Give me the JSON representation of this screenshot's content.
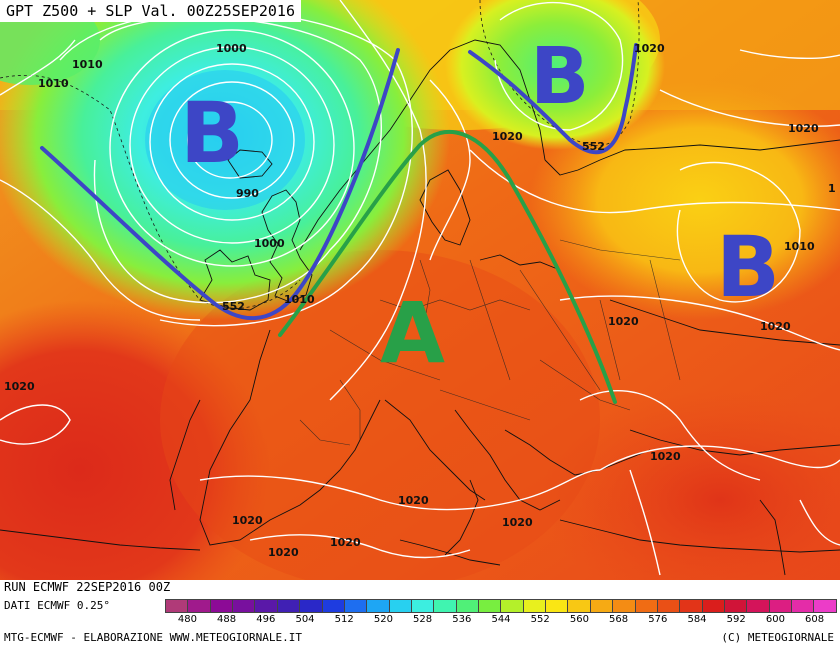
{
  "title": "GPT Z500 + SLP Val. 00Z25SEP2016",
  "footer": {
    "run": "RUN ECMWF 22SEP2016 00Z",
    "dati": "DATI ECMWF 0.25°",
    "elaborazione": "MTG-ECMWF - ELABORAZIONE WWW.METEOGIORNALE.IT",
    "copyright": "(C) METEOGIORNALE"
  },
  "legend": {
    "ticks": [
      "480",
      "488",
      "496",
      "504",
      "512",
      "520",
      "528",
      "536",
      "544",
      "552",
      "560",
      "568",
      "576",
      "584",
      "592",
      "600",
      "608"
    ],
    "colors": [
      "#b03a78",
      "#a01a8c",
      "#8c0a96",
      "#78109e",
      "#5a18a8",
      "#4020b4",
      "#2a28c8",
      "#1e3ce0",
      "#1e6ef0",
      "#1ea6f4",
      "#28d0f0",
      "#3ceee0",
      "#40f4b0",
      "#50f078",
      "#78ee40",
      "#b4f02a",
      "#e8f01e",
      "#fae614",
      "#f8c814",
      "#f6aa14",
      "#f48c14",
      "#f06c14",
      "#ea5016",
      "#e23418",
      "#da1e1c",
      "#d01438",
      "#d4145a",
      "#dc1e82",
      "#e42ca8",
      "#ec3cc8"
    ]
  },
  "map": {
    "isobar_labels": [
      "1000",
      "1010",
      "1010",
      "990",
      "1000",
      "552",
      "1010",
      "1020",
      "1020",
      "552",
      "1020",
      "1010",
      "1020",
      "1020",
      "1020",
      "1020",
      "1020",
      "1020",
      "1020",
      "1020",
      "1020",
      "1"
    ],
    "pressure_centers": [
      {
        "letter": "B",
        "color": "#3d46c6"
      },
      {
        "letter": "B",
        "color": "#3d46c6"
      },
      {
        "letter": "B",
        "color": "#3d46c6"
      },
      {
        "letter": "A",
        "color": "#28a048"
      }
    ]
  }
}
